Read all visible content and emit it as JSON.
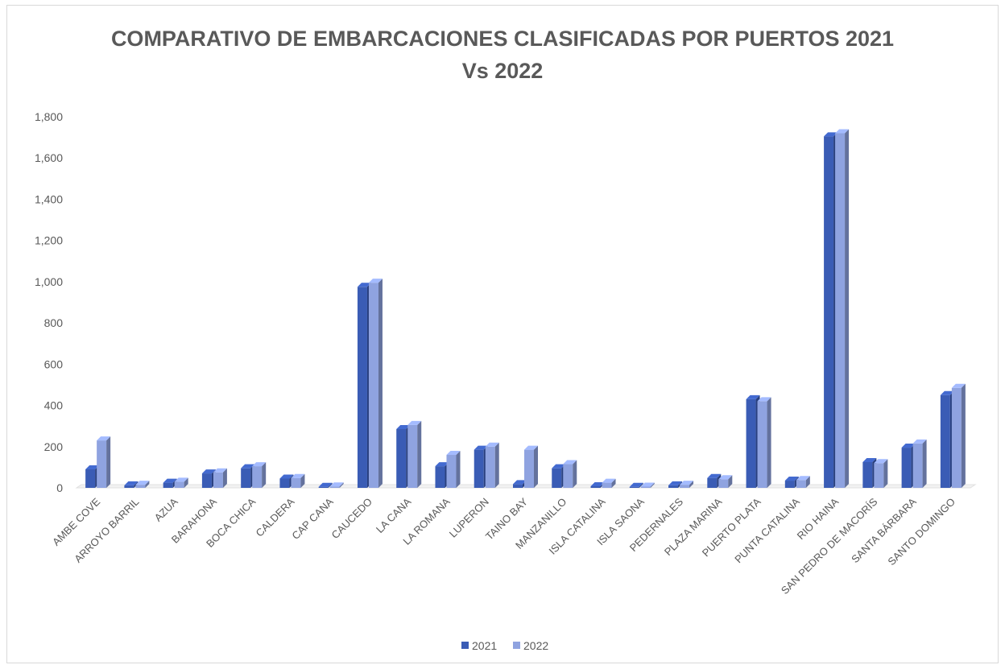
{
  "chart_data": {
    "type": "bar",
    "title_line1": "COMPARATIVO DE EMBARCACIONES CLASIFICADAS POR PUERTOS 2021",
    "title_line2": "Vs 2022",
    "ylim": [
      0,
      1800
    ],
    "yticks": [
      "0",
      "200",
      "400",
      "600",
      "800",
      "1,000",
      "1,200",
      "1,400",
      "1,600",
      "1,800"
    ],
    "ytick_values": [
      0,
      200,
      400,
      600,
      800,
      1000,
      1200,
      1400,
      1600,
      1800
    ],
    "categories": [
      "AMBE COVE",
      "ARROYO BARRIL",
      "AZUA",
      "BARAHONA",
      "BOCA CHICA",
      "CALDERA",
      "CAP CANA",
      "CAUCEDO",
      "LA CANA",
      "LA ROMANA",
      "LUPERON",
      "TAINO BAY",
      "MANZANILLO",
      "ISLA CATALINA",
      "ISLA SAONA",
      "PEDERNALES",
      "PLAZA MARINA",
      "PUERTO PLATA",
      "PUNTA CATALINA",
      "RIO HAINA",
      "SAN PEDRO DE MACORÍS",
      "SANTA BÁRBARA",
      "SANTO DOMINGO"
    ],
    "series": [
      {
        "name": "2021",
        "color": "#3a5cb5",
        "values": [
          90,
          12,
          25,
          70,
          95,
          45,
          5,
          975,
          285,
          105,
          185,
          18,
          95,
          8,
          5,
          12,
          48,
          430,
          35,
          1705,
          125,
          195,
          450
        ]
      },
      {
        "name": "2022",
        "color": "#8fa3e0",
        "values": [
          230,
          15,
          30,
          75,
          105,
          48,
          7,
          995,
          305,
          160,
          200,
          185,
          115,
          25,
          6,
          15,
          42,
          420,
          38,
          1720,
          120,
          215,
          485
        ]
      }
    ],
    "legend": "bottom",
    "grid": false
  }
}
